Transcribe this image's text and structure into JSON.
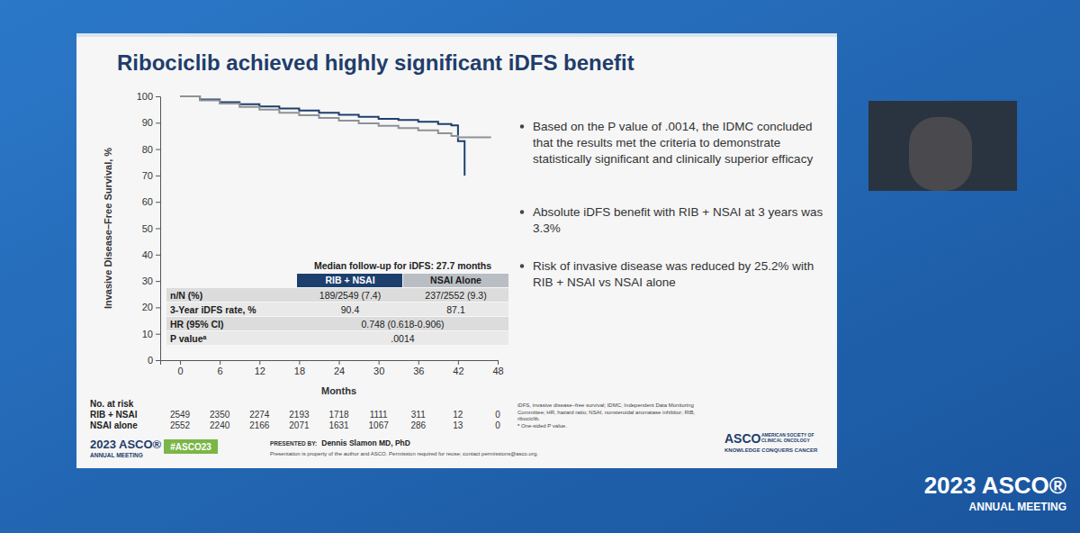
{
  "chart_data": {
    "type": "line",
    "title": "Ribociclib achieved highly significant iDFS benefit",
    "y_label": "Invasive Disease–Free Survival, %",
    "x_label": "Months",
    "x": [
      0,
      3,
      6,
      9,
      12,
      15,
      18,
      21,
      24,
      27,
      30,
      33,
      36,
      39,
      41,
      42,
      43,
      45,
      47
    ],
    "series": [
      {
        "name": "RIB + NSAI",
        "color": "#1d3f6e",
        "values": [
          100,
          98.8,
          97.8,
          97,
          96.2,
          95.4,
          94.6,
          93.8,
          93,
          92.2,
          91.5,
          91,
          90.4,
          89.5,
          89,
          83,
          70,
          null,
          null
        ]
      },
      {
        "name": "NSAI Alone",
        "color": "#8e9296",
        "values": [
          100,
          98.5,
          97.3,
          96,
          95,
          93.8,
          92.8,
          91.8,
          90.8,
          89.8,
          88.8,
          88,
          87.1,
          86,
          85,
          84.5,
          84.5,
          84.5,
          84.5
        ]
      }
    ],
    "xlim": [
      -3,
      48
    ],
    "xticks": [
      0,
      6,
      12,
      18,
      24,
      30,
      36,
      42,
      48
    ],
    "ylim": [
      0,
      100
    ],
    "yticks": [
      0,
      10,
      20,
      30,
      40,
      50,
      60,
      70,
      80,
      90,
      100
    ],
    "grid": false,
    "line_style": "step"
  },
  "inset_table": {
    "caption": "Median follow-up for iDFS: 27.7 months",
    "rows": [
      [
        "n/N (%)",
        "189/2549 (7.4)",
        "237/2552 (9.3)"
      ],
      [
        "3-Year iDFS rate, %",
        "90.4",
        "87.1"
      ],
      [
        "HR (95% CI)",
        "0.748 (0.618-0.906)"
      ],
      [
        "P valueᵃ",
        ".0014"
      ]
    ]
  },
  "risk_table": {
    "title": "No. at risk",
    "rows": [
      {
        "label": "RIB + NSAI",
        "counts": [
          2549,
          2350,
          2274,
          2193,
          1718,
          1111,
          311,
          12,
          0
        ]
      },
      {
        "label": "NSAI alone",
        "counts": [
          2552,
          2240,
          2166,
          2071,
          1631,
          1067,
          286,
          13,
          0
        ]
      }
    ]
  },
  "bullets": [
    "Based on the P value of .0014, the IDMC concluded that the results met the criteria to demonstrate statistically significant and clinically superior efficacy",
    "Absolute iDFS benefit with RIB + NSAI at 3 years was 3.3%",
    "Risk of invasive disease was reduced by 25.2% with RIB + NSAI vs NSAI alone"
  ],
  "footer": {
    "logo": "2023 ASCO®",
    "logo_sub": "ANNUAL MEETING",
    "hashtag": "#ASCO23",
    "presented_label": "PRESENTED BY:",
    "presenter": "Dennis Slamon MD, PhD",
    "permission": "Presentation is property of the author and ASCO. Permission required for reuse; contact permissions@asco.org.",
    "footnotes": [
      "iDFS, invasive disease–free survival; IDMC, Independent Data Monitoring Committee; HR, hazard ratio; NSAI, nonsteroidal aromatase inhibitor; RIB, ribociclib.",
      "ᵃ One-sided P value."
    ],
    "society": "ASCO",
    "society_sub": [
      "AMERICAN SOCIETY OF",
      "CLINICAL ONCOLOGY"
    ],
    "tagline": "KNOWLEDGE CONQUERS CANCER"
  },
  "banner": {
    "title": "2023 ASCO®",
    "sub": "ANNUAL MEETING"
  }
}
